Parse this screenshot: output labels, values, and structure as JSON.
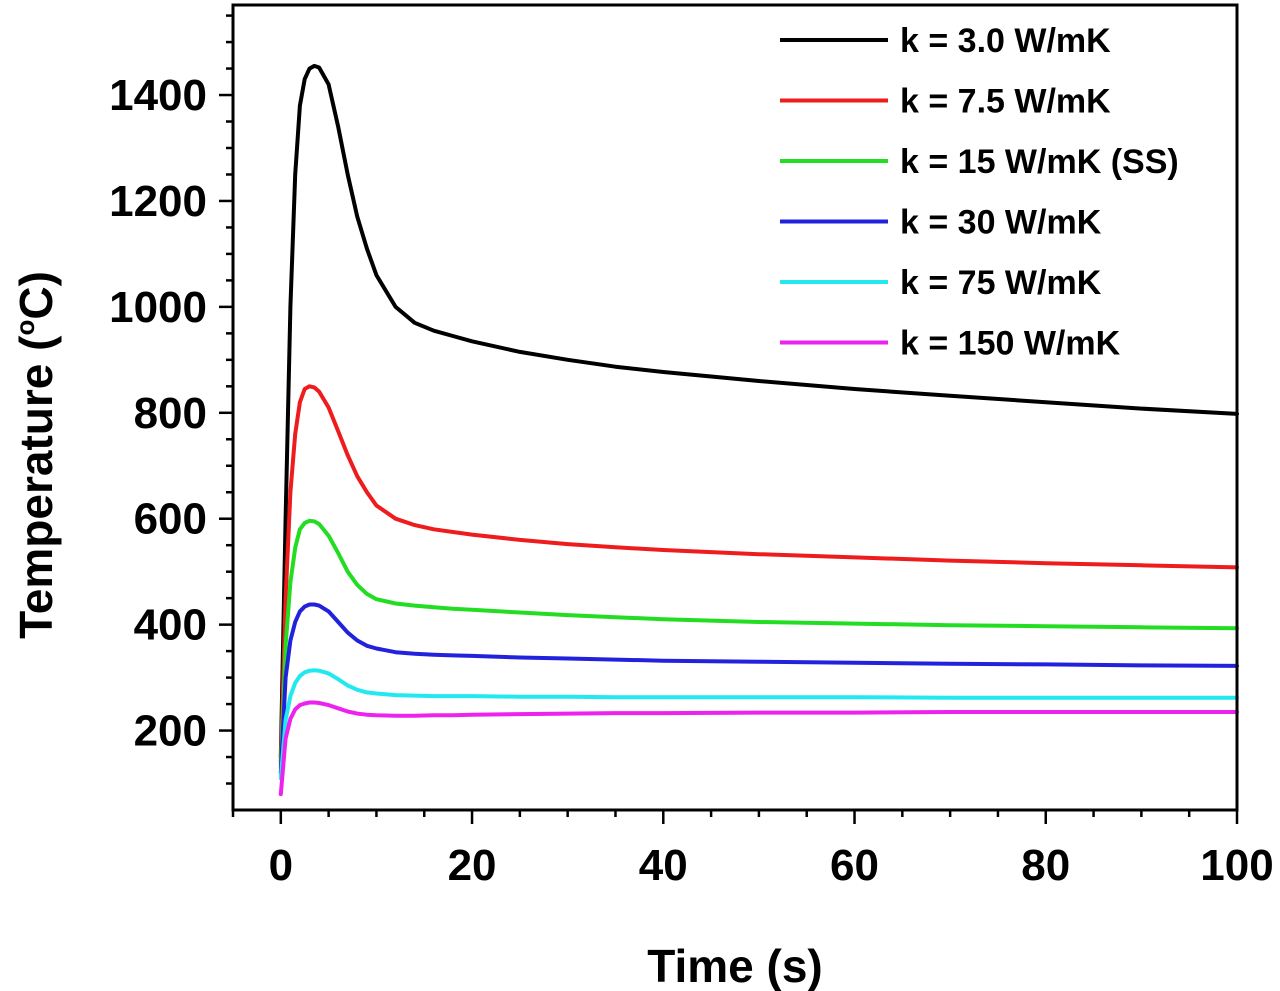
{
  "chart_data": {
    "type": "line",
    "title": "",
    "xlabel": "Time (s)",
    "ylabel": "Temperature (°C)",
    "ylabel_main": "Temperature (",
    "ylabel_degree": "o",
    "ylabel_tail": "C)",
    "xlim": [
      -5,
      100
    ],
    "ylim": [
      50,
      1570
    ],
    "xticks": [
      0,
      20,
      40,
      60,
      80,
      100
    ],
    "xtick_labels": [
      "0",
      "20",
      "40",
      "60",
      "80",
      "100"
    ],
    "yticks": [
      200,
      400,
      600,
      800,
      1000,
      1200,
      1400
    ],
    "ytick_labels": [
      "200",
      "400",
      "600",
      "800",
      "1000",
      "1200",
      "1400"
    ],
    "grid": false,
    "legend_position": "top-right",
    "x": [
      0,
      0.5,
      1,
      1.5,
      2,
      2.5,
      3,
      3.5,
      4,
      5,
      6,
      7,
      8,
      9,
      10,
      12,
      14,
      16,
      18,
      20,
      25,
      30,
      35,
      40,
      50,
      60,
      70,
      80,
      90,
      100
    ],
    "series": [
      {
        "name": "k = 3.0 W/mK",
        "color": "#000000",
        "values": [
          150,
          600,
          1000,
          1250,
          1380,
          1430,
          1450,
          1455,
          1452,
          1420,
          1340,
          1250,
          1170,
          1110,
          1060,
          1000,
          970,
          955,
          945,
          935,
          915,
          900,
          887,
          877,
          860,
          845,
          832,
          820,
          808,
          798
        ]
      },
      {
        "name": "k = 7.5 W/mK",
        "color": "#ee1c1c",
        "values": [
          140,
          450,
          650,
          760,
          820,
          845,
          850,
          848,
          840,
          810,
          765,
          720,
          680,
          650,
          625,
          600,
          588,
          580,
          575,
          570,
          560,
          552,
          546,
          541,
          533,
          527,
          521,
          516,
          512,
          508
        ]
      },
      {
        "name": "k = 15 W/mK (SS)",
        "color": "#22dd22",
        "values": [
          130,
          360,
          480,
          545,
          580,
          592,
          596,
          595,
          590,
          568,
          535,
          500,
          475,
          458,
          448,
          440,
          436,
          433,
          430,
          428,
          423,
          418,
          414,
          410,
          405,
          402,
          399,
          397,
          395,
          393
        ]
      },
      {
        "name": "k = 30 W/mK",
        "color": "#2222dd",
        "values": [
          120,
          300,
          370,
          405,
          425,
          434,
          438,
          438,
          436,
          425,
          405,
          385,
          370,
          360,
          355,
          348,
          345,
          343,
          342,
          341,
          338,
          336,
          334,
          332,
          330,
          328,
          326,
          325,
          323,
          322
        ]
      },
      {
        "name": "k = 75 W/mK",
        "color": "#22e8f0",
        "values": [
          110,
          220,
          265,
          290,
          303,
          310,
          313,
          314,
          313,
          308,
          297,
          285,
          277,
          272,
          270,
          267,
          266,
          265,
          265,
          265,
          264,
          264,
          263,
          263,
          263,
          263,
          262,
          262,
          262,
          262
        ]
      },
      {
        "name": "k = 150 W/mK",
        "color": "#ee22ee",
        "values": [
          80,
          185,
          222,
          240,
          248,
          251,
          253,
          253,
          252,
          248,
          242,
          236,
          232,
          230,
          229,
          228,
          228,
          229,
          229,
          230,
          231,
          232,
          233,
          233,
          234,
          234,
          235,
          235,
          235,
          235
        ]
      }
    ]
  }
}
